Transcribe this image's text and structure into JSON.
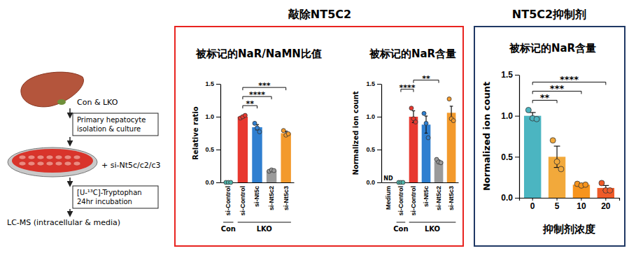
{
  "workflow": {
    "label": "Con & LKO",
    "culture": [
      "Primary hepatocyte",
      "isolation & culture"
    ],
    "treatment": "+ si-Nt5c/c2/c3",
    "labeling": [
      "[U-¹³C]-Tryptophan",
      "24hr incubation"
    ],
    "readout": "LC-MS (intracellular & media)"
  },
  "panels": [
    {
      "title": "敲除NT5C2",
      "color": "#e8231f"
    },
    {
      "title": "NT5C2抑制剂",
      "color": "#1f3864"
    }
  ],
  "chart_data": [
    {
      "type": "bar",
      "title": "被标记的NaR/NaMN比值",
      "y_label": "Relative ratio",
      "categories": [
        "si-Control",
        "si-Control",
        "si-Nt5c",
        "si-Nt5c2",
        "si-Nt5c3"
      ],
      "values": [
        0.0,
        1.0,
        0.84,
        0.18,
        0.75
      ],
      "errors": [
        0.0,
        0.01,
        0.04,
        0.01,
        0.03
      ],
      "points": [
        [
          0.0,
          0.0,
          0.0
        ],
        [
          0.98,
          1.0,
          1.02
        ],
        [
          0.9,
          0.83,
          0.77
        ],
        [
          0.17,
          0.19,
          0.18
        ],
        [
          0.79,
          0.72,
          0.74
        ]
      ],
      "colors": [
        "#4fb3a9",
        "#e8382f",
        "#2f7fd0",
        "#9a9a9a",
        "#f39a2c"
      ],
      "ylim": [
        0,
        1.5
      ],
      "yticks": [
        {
          "value": 0,
          "label": "0.0"
        },
        {
          "value": 0.5,
          "label": "0.5"
        },
        {
          "value": 1,
          "label": "1.0"
        },
        {
          "value": 1.5,
          "label": "1.5"
        }
      ],
      "groups": [
        {
          "label": "Con",
          "from": 0,
          "to": 0
        },
        {
          "label": "LKO",
          "from": 1,
          "to": 4
        }
      ],
      "significance": [
        {
          "from": 1,
          "to": 2,
          "label": "**"
        },
        {
          "from": 1,
          "to": 3,
          "label": "****"
        },
        {
          "from": 1,
          "to": 4,
          "label": "***"
        }
      ]
    },
    {
      "type": "bar",
      "title": "被标记的NaR含量",
      "y_label": "Normalized ion count",
      "categories": [
        "Medium",
        "si-Control",
        "si-Control",
        "si-Nt5c",
        "si-Nt5c2",
        "si-Nt5c3"
      ],
      "values": [
        null,
        0.0,
        1.0,
        0.88,
        0.32,
        1.06
      ],
      "errors": [
        null,
        0.0,
        0.09,
        0.13,
        0.02,
        0.1
      ],
      "points": [
        null,
        [
          0.0,
          0.0,
          0.0
        ],
        [
          1.13,
          0.97,
          0.92
        ],
        [
          1.05,
          0.9,
          0.68
        ],
        [
          0.35,
          0.31,
          0.3
        ],
        [
          1.27,
          0.97,
          0.94
        ]
      ],
      "colors": [
        null,
        "#4fb3a9",
        "#e8382f",
        "#2f7fd0",
        "#9a9a9a",
        "#f39a2c"
      ],
      "ylim": [
        0,
        1.5
      ],
      "yticks": [
        {
          "value": 0,
          "label": "0.0"
        },
        {
          "value": 0.5,
          "label": "0.5"
        },
        {
          "value": 1,
          "label": "1.0"
        },
        {
          "value": 1.5,
          "label": "1.5"
        }
      ],
      "annotations": [
        {
          "index": 0,
          "text": "ND"
        }
      ],
      "groups": [
        {
          "label": "Con",
          "from": 1,
          "to": 1
        },
        {
          "label": "LKO",
          "from": 2,
          "to": 5
        }
      ],
      "significance": [
        {
          "from": 1,
          "to": 2,
          "label": "****"
        },
        {
          "from": 2,
          "to": 4,
          "label": "**"
        }
      ]
    },
    {
      "type": "bar",
      "title": "被标记的NaR含量",
      "y_label": "Normalized ion count",
      "x_label": "抑制剂浓度",
      "categories": [
        "0",
        "5",
        "10",
        "20"
      ],
      "values": [
        1.0,
        0.5,
        0.16,
        0.12
      ],
      "errors": [
        0.04,
        0.13,
        0.01,
        0.03
      ],
      "points": [
        [
          1.07,
          0.97,
          0.96
        ],
        [
          0.7,
          0.44,
          0.35
        ],
        [
          0.17,
          0.15,
          0.16
        ],
        [
          0.18,
          0.09,
          0.09
        ]
      ],
      "colors": [
        "#4bb5c1",
        "#f2a93b",
        "#f7941d",
        "#ef5a28"
      ],
      "ylim": [
        0,
        1.5
      ],
      "yticks": [
        {
          "value": 0,
          "label": "0.0"
        },
        {
          "value": 0.5,
          "label": "0.5"
        },
        {
          "value": 1,
          "label": "1.0"
        },
        {
          "value": 1.5,
          "label": "1.5"
        }
      ],
      "significance": [
        {
          "from": 0,
          "to": 1,
          "label": "**"
        },
        {
          "from": 0,
          "to": 2,
          "label": "***"
        },
        {
          "from": 0,
          "to": 3,
          "label": "****"
        }
      ]
    }
  ]
}
